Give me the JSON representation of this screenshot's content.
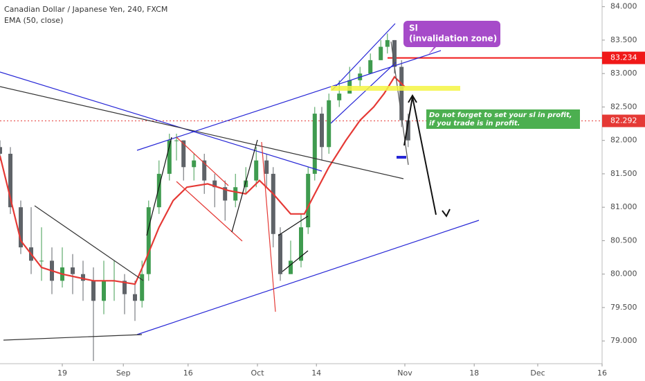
{
  "chart_data": {
    "type": "candlestick",
    "title": "Canadian Dollar / Japanese Yen, 240, FXCM",
    "up_color": "#3f9b4f",
    "down_color": "#5f6368",
    "candles": {
      "x": [
        0,
        2.5,
        5,
        7.5,
        10,
        12.5,
        15,
        17.5,
        20,
        22.5,
        25,
        27.5,
        30,
        32.5,
        34.2,
        35.8,
        38.3,
        40.8,
        42.5,
        44.2,
        46.7,
        49.2,
        51.7,
        54.2,
        56.7,
        59.2,
        61.7,
        64.2,
        65.8,
        67.5,
        70,
        72.5,
        74.2,
        75.8,
        77.5,
        79.2,
        81.7,
        84.2,
        86.7,
        89.2,
        91.7,
        93.3,
        95,
        96.7,
        98.3
      ],
      "open": [
        81.9,
        81.8,
        81.0,
        80.4,
        80.2,
        80.2,
        79.9,
        80.1,
        80.0,
        79.9,
        79.6,
        79.9,
        79.9,
        79.7,
        79.6,
        80.0,
        81.0,
        81.5,
        82.0,
        82.0,
        81.6,
        81.7,
        81.4,
        81.3,
        81.1,
        81.3,
        81.4,
        81.7,
        81.5,
        80.6,
        80.0,
        80.2,
        80.7,
        81.5,
        82.4,
        81.9,
        82.6,
        82.7,
        82.9,
        83.0,
        83.2,
        83.4,
        83.5,
        83.1,
        82.3
      ],
      "high": [
        82.0,
        81.9,
        81.1,
        81.0,
        80.7,
        80.4,
        80.4,
        80.3,
        80.2,
        80.1,
        80.2,
        80.2,
        80.0,
        79.9,
        80.2,
        81.1,
        81.7,
        82.1,
        82.1,
        82.0,
        81.8,
        81.8,
        81.5,
        81.4,
        81.5,
        81.6,
        81.9,
        81.8,
        81.6,
        80.7,
        80.5,
        80.9,
        81.6,
        82.5,
        82.5,
        82.7,
        82.9,
        83.1,
        83.1,
        83.3,
        83.5,
        83.6,
        83.5,
        83.2,
        82.4
      ],
      "low": [
        81.7,
        80.9,
        80.3,
        80.0,
        79.9,
        79.7,
        79.8,
        79.7,
        79.6,
        78.7,
        79.4,
        79.6,
        79.4,
        79.3,
        79.5,
        79.9,
        80.9,
        81.4,
        81.7,
        81.4,
        81.4,
        81.2,
        81.0,
        80.8,
        81.0,
        81.2,
        81.3,
        81.3,
        80.4,
        79.9,
        80.0,
        80.1,
        80.6,
        81.4,
        81.7,
        81.8,
        82.5,
        82.7,
        82.8,
        83.0,
        83.2,
        83.3,
        83.0,
        82.2,
        81.9
      ],
      "close": [
        81.8,
        81.0,
        80.4,
        80.2,
        80.2,
        79.9,
        80.1,
        80.0,
        79.9,
        79.6,
        79.9,
        79.9,
        79.7,
        79.6,
        80.0,
        81.0,
        81.5,
        82.0,
        82.0,
        81.6,
        81.7,
        81.4,
        81.3,
        81.1,
        81.3,
        81.4,
        81.7,
        81.5,
        80.6,
        80.0,
        80.2,
        80.7,
        81.5,
        82.4,
        81.9,
        82.6,
        82.7,
        82.9,
        83.0,
        83.2,
        83.4,
        83.5,
        83.1,
        82.3,
        82.0
      ]
    },
    "ema": {
      "name": "EMA (50, close)",
      "color": "#e53935",
      "x": [
        0,
        5,
        10,
        15,
        22.5,
        27.5,
        32.5,
        35,
        38.3,
        41.7,
        45,
        50,
        55,
        59.2,
        62.5,
        65.8,
        70,
        73.3,
        75.8,
        79.2,
        83.3,
        86.7,
        90,
        92.5,
        95,
        97.5
      ],
      "values": [
        81.77,
        80.5,
        80.1,
        80.0,
        79.9,
        79.9,
        79.85,
        80.2,
        80.7,
        81.1,
        81.3,
        81.35,
        81.25,
        81.2,
        81.4,
        81.2,
        80.9,
        80.9,
        81.2,
        81.6,
        82.0,
        82.3,
        82.5,
        82.7,
        82.95,
        82.8
      ]
    },
    "price_lines": [
      {
        "value": 83.234,
        "label": "83.234",
        "color": "#f01818"
      },
      {
        "value": 82.292,
        "label": "82.292",
        "color": "#e53935"
      }
    ],
    "xlim": [
      0,
      145
    ],
    "ylim": [
      78.66,
      84.1
    ],
    "xticks": [
      {
        "value": 15,
        "label": "19"
      },
      {
        "value": 29.7,
        "label": "Sep"
      },
      {
        "value": 45.3,
        "label": "16"
      },
      {
        "value": 62,
        "label": "Oct"
      },
      {
        "value": 76.2,
        "label": "14"
      },
      {
        "value": 97.5,
        "label": "Nov"
      },
      {
        "value": 114.2,
        "label": "18"
      },
      {
        "value": 129.5,
        "label": "Dec"
      },
      {
        "value": 145,
        "label": "16"
      }
    ],
    "yticks": [
      {
        "value": 84,
        "label": "84.000"
      },
      {
        "value": 83.5,
        "label": "83.500"
      },
      {
        "value": 83,
        "label": "83.000"
      },
      {
        "value": 82.5,
        "label": "82.500"
      },
      {
        "value": 82,
        "label": "82.000"
      },
      {
        "value": 81.5,
        "label": "81.500"
      },
      {
        "value": 81,
        "label": "81.000"
      },
      {
        "value": 80.5,
        "label": "80.500"
      },
      {
        "value": 80,
        "label": "80.000"
      },
      {
        "value": 79.5,
        "label": "79.500"
      },
      {
        "value": 79,
        "label": "79.000"
      }
    ],
    "annotations": {
      "sl_title": "Sl",
      "sl_note": "(invalidation zone)",
      "tip_1": "Do not forget to set your sl in profit,",
      "tip_2": "if you trade is in profit."
    }
  }
}
